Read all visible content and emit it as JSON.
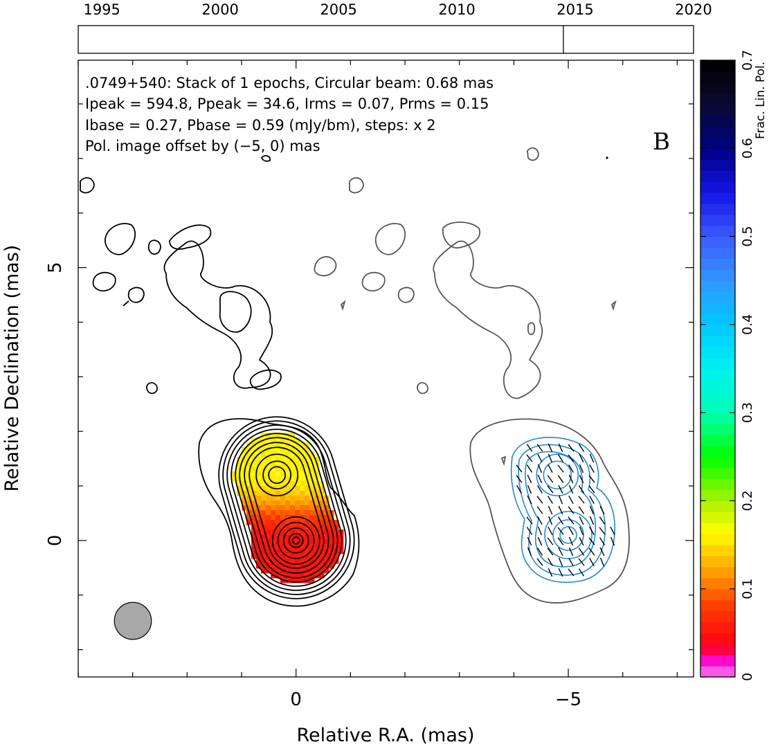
{
  "chart_data": {
    "type": "heatmap",
    "timeline": {
      "tick_labels": [
        "1995",
        "2000",
        "2005",
        "2010",
        "2015",
        "2020"
      ],
      "range": [
        1994,
        2020
      ],
      "epochs": [
        2014.5
      ]
    },
    "info_lines": [
      ".0749+540: Stack of 1 epochs, Circular beam: 0.68 mas",
      "Ipeak = 594.8, Ppeak = 34.6, Irms = 0.07, Prms = 0.15",
      "Ibase = 0.27, Pbase = 0.59 (mJy/bm), steps: x 2"
    ],
    "offset_note": "Pol. image offset by (−5, 0) mas",
    "panel_letter": "B",
    "xlabel": "Relative R.A. (mas)",
    "ylabel": "Relative Declination (mas)",
    "xlim": [
      4,
      -7.3
    ],
    "ylim": [
      -2.5,
      8.8
    ],
    "x_tick_labels": [
      {
        "value": 0,
        "label": "0"
      },
      {
        "value": -5,
        "label": "−5"
      }
    ],
    "y_tick_labels": [
      {
        "value": 0,
        "label": "0"
      },
      {
        "value": 5,
        "label": "5"
      }
    ],
    "beam_diameter_mas": 0.68,
    "colorbar": {
      "label": "Frac. Lin. Pol.",
      "range": [
        0,
        0.7
      ],
      "tick_labels": [
        "0",
        "0.1",
        "0.2",
        "0.3",
        "0.4",
        "0.5",
        "0.6",
        "0.7"
      ]
    },
    "colors": {
      "total_intensity_contours": "#000000",
      "offset_total_intensity_contours": "#555555",
      "polarization_contours": "#1f88d8",
      "offset_text": "#1f88d8",
      "beam_fill": "#a8a8a8"
    },
    "core_component": {
      "x": 0,
      "y": 0,
      "frac_pol": 0.05
    },
    "inner_jet_component": {
      "x": 0.35,
      "y": 1.2,
      "frac_pol": 0.16
    },
    "polarization_peaks": [
      {
        "x": -4.8,
        "y": 1.2
      },
      {
        "x": -5.0,
        "y": 0.1
      }
    ]
  }
}
